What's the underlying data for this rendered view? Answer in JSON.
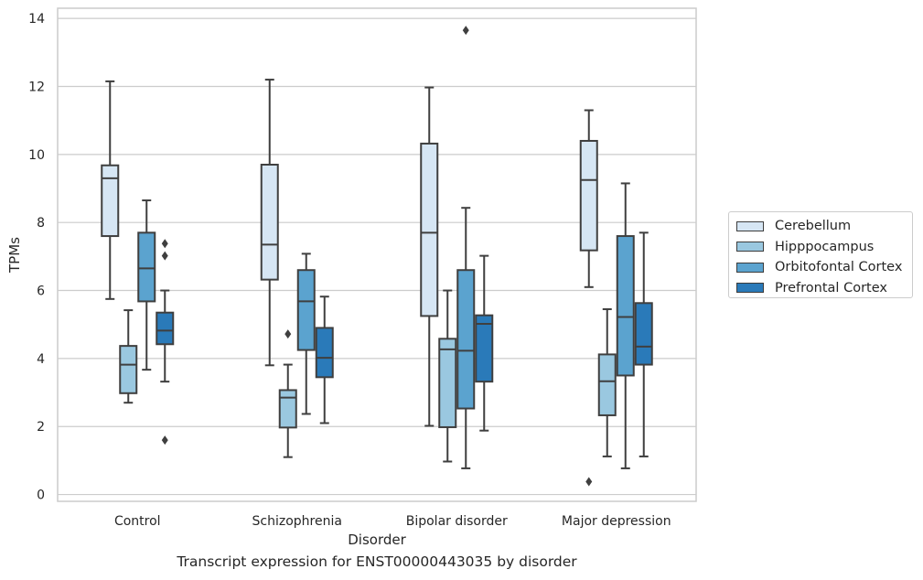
{
  "chart_data": {
    "type": "box",
    "xlabel": "Disorder",
    "ylabel": "TPMs",
    "caption": "Transcript expression for ENST00000443035 by disorder",
    "ylim": [
      -0.2,
      14.3
    ],
    "yticks": [
      0,
      2,
      4,
      6,
      8,
      10,
      12,
      14
    ],
    "grid": "horizontal",
    "legend_position": "right",
    "categories": [
      "Control",
      "Schizophrenia",
      "Bipolar disorder",
      "Major depression"
    ],
    "series": [
      {
        "name": "Cerebellum",
        "color": "#d6e6f4",
        "boxes": [
          {
            "whisker_low": 5.75,
            "q1": 7.6,
            "median": 9.3,
            "q3": 9.68,
            "whisker_high": 12.15,
            "outliers": []
          },
          {
            "whisker_low": 3.8,
            "q1": 6.32,
            "median": 7.35,
            "q3": 9.7,
            "whisker_high": 12.2,
            "outliers": []
          },
          {
            "whisker_low": 2.02,
            "q1": 5.25,
            "median": 7.7,
            "q3": 10.32,
            "whisker_high": 11.97,
            "outliers": []
          },
          {
            "whisker_low": 6.1,
            "q1": 7.18,
            "median": 9.25,
            "q3": 10.4,
            "whisker_high": 11.3,
            "outliers": [
              0.38
            ]
          }
        ]
      },
      {
        "name": "Hipppocampus",
        "color": "#9ac8e0",
        "boxes": [
          {
            "whisker_low": 2.7,
            "q1": 2.98,
            "median": 3.82,
            "q3": 4.37,
            "whisker_high": 5.42,
            "outliers": []
          },
          {
            "whisker_low": 1.1,
            "q1": 1.97,
            "median": 2.85,
            "q3": 3.07,
            "whisker_high": 3.82,
            "outliers": [
              4.72
            ]
          },
          {
            "whisker_low": 0.97,
            "q1": 1.98,
            "median": 4.27,
            "q3": 4.58,
            "whisker_high": 6.0,
            "outliers": []
          },
          {
            "whisker_low": 1.12,
            "q1": 2.33,
            "median": 3.33,
            "q3": 4.12,
            "whisker_high": 5.45,
            "outliers": []
          }
        ]
      },
      {
        "name": "Orbitofontal Cortex",
        "color": "#5ba3cf",
        "boxes": [
          {
            "whisker_low": 3.67,
            "q1": 5.68,
            "median": 6.65,
            "q3": 7.7,
            "whisker_high": 8.65,
            "outliers": []
          },
          {
            "whisker_low": 2.37,
            "q1": 4.25,
            "median": 5.68,
            "q3": 6.6,
            "whisker_high": 7.08,
            "outliers": []
          },
          {
            "whisker_low": 0.77,
            "q1": 2.53,
            "median": 4.23,
            "q3": 6.6,
            "whisker_high": 8.43,
            "outliers": [
              13.65
            ]
          },
          {
            "whisker_low": 0.77,
            "q1": 3.5,
            "median": 5.22,
            "q3": 7.6,
            "whisker_high": 9.15,
            "outliers": []
          }
        ]
      },
      {
        "name": "Prefrontal Cortex",
        "color": "#2a7ab9",
        "boxes": [
          {
            "whisker_low": 3.32,
            "q1": 4.42,
            "median": 4.82,
            "q3": 5.35,
            "whisker_high": 6.0,
            "outliers": [
              7.02,
              7.38,
              1.6
            ]
          },
          {
            "whisker_low": 2.1,
            "q1": 3.45,
            "median": 4.02,
            "q3": 4.9,
            "whisker_high": 5.82,
            "outliers": []
          },
          {
            "whisker_low": 1.88,
            "q1": 3.32,
            "median": 5.02,
            "q3": 5.27,
            "whisker_high": 7.02,
            "outliers": []
          },
          {
            "whisker_low": 1.12,
            "q1": 3.82,
            "median": 4.35,
            "q3": 5.63,
            "whisker_high": 7.7,
            "outliers": []
          }
        ]
      }
    ]
  }
}
